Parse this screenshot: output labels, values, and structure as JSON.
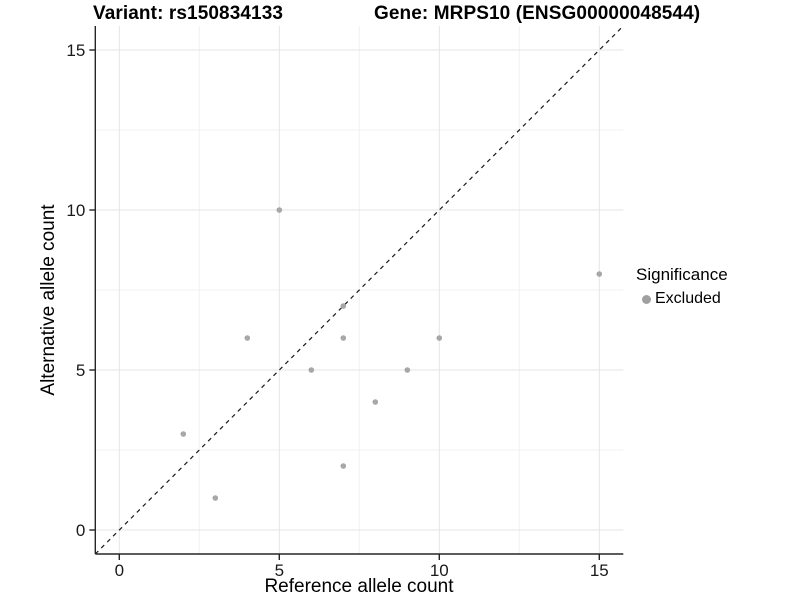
{
  "chart_data": {
    "type": "scatter",
    "title_left": "Variant: rs150834133",
    "title_right": "Gene: MRPS10 (ENSG00000048544)",
    "xlabel": "Reference allele count",
    "ylabel": "Alternative allele count",
    "xlim": [
      -0.75,
      15.75
    ],
    "ylim": [
      -0.75,
      15.75
    ],
    "x_ticks": [
      0,
      5,
      10,
      15
    ],
    "y_ticks": [
      0,
      5,
      10,
      15
    ],
    "x_minor_ticks": [
      2.5,
      7.5,
      12.5
    ],
    "y_minor_ticks": [
      2.5,
      7.5,
      12.5
    ],
    "grid": "major+minor",
    "legend_position": "right",
    "identity_line": {
      "style": "dashed",
      "slope": 1,
      "intercept": 0,
      "color": "#1a1a1a"
    },
    "series": [
      {
        "name": "Excluded",
        "marker": "circle",
        "color": "#a7a7a7",
        "points": [
          [
            2,
            3
          ],
          [
            3,
            1
          ],
          [
            4,
            6
          ],
          [
            5,
            10
          ],
          [
            6,
            5
          ],
          [
            7,
            2
          ],
          [
            7,
            6
          ],
          [
            7,
            7
          ],
          [
            8,
            4
          ],
          [
            9,
            5
          ],
          [
            10,
            6
          ],
          [
            15,
            8
          ]
        ]
      }
    ],
    "legend": {
      "title": "Significance",
      "items": [
        {
          "label": "Excluded",
          "color": "#a0a0a0"
        }
      ]
    },
    "colors": {
      "background": "#ffffff",
      "grid_major": "#e4e4e4",
      "grid_minor": "#f1f1f1",
      "axis_line": "#262626",
      "tick_label": "#1a1a1a",
      "title": "#000000"
    }
  }
}
